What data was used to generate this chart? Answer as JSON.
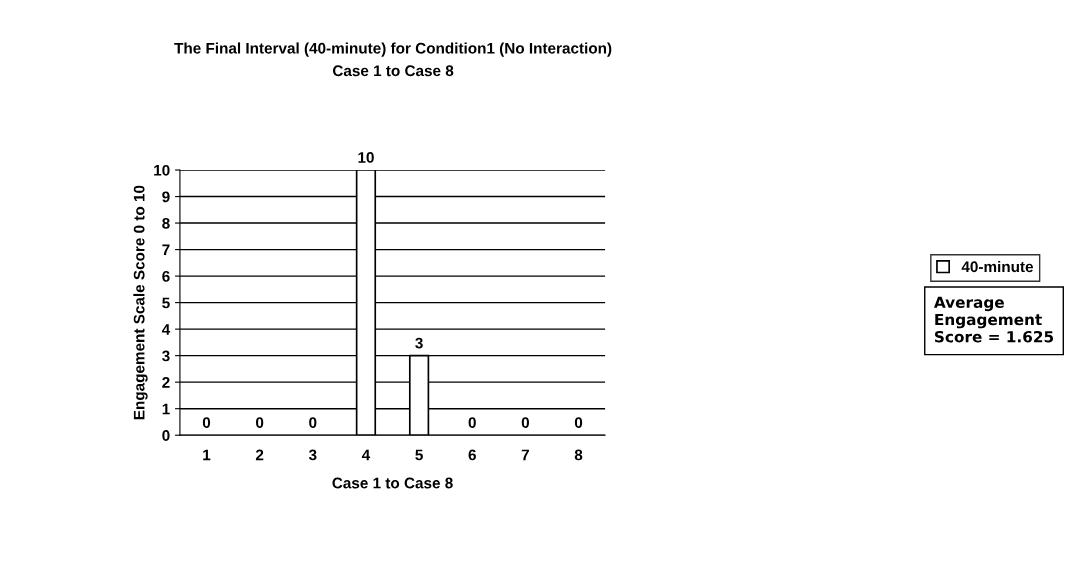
{
  "chart_data": {
    "type": "bar",
    "title": "The Final Interval (40-minute) for Condition1 (No Interaction)",
    "subtitle": "Case 1 to Case 8",
    "xlabel": "Case 1 to Case 8",
    "ylabel": "Engagement Scale Score 0 to 10",
    "categories": [
      "1",
      "2",
      "3",
      "4",
      "5",
      "6",
      "7",
      "8"
    ],
    "series": [
      {
        "name": "40-minute",
        "color": "#ffffff",
        "values": [
          0,
          0,
          0,
          10,
          3,
          0,
          0,
          0
        ]
      }
    ],
    "ylim": [
      0,
      10
    ],
    "yticks": [
      0,
      1,
      2,
      3,
      4,
      5,
      6,
      7,
      8,
      9,
      10
    ],
    "grid": "y",
    "legend": "right",
    "data_labels": true,
    "annotations": [
      "Average Engagement Score = 1.625"
    ]
  }
}
